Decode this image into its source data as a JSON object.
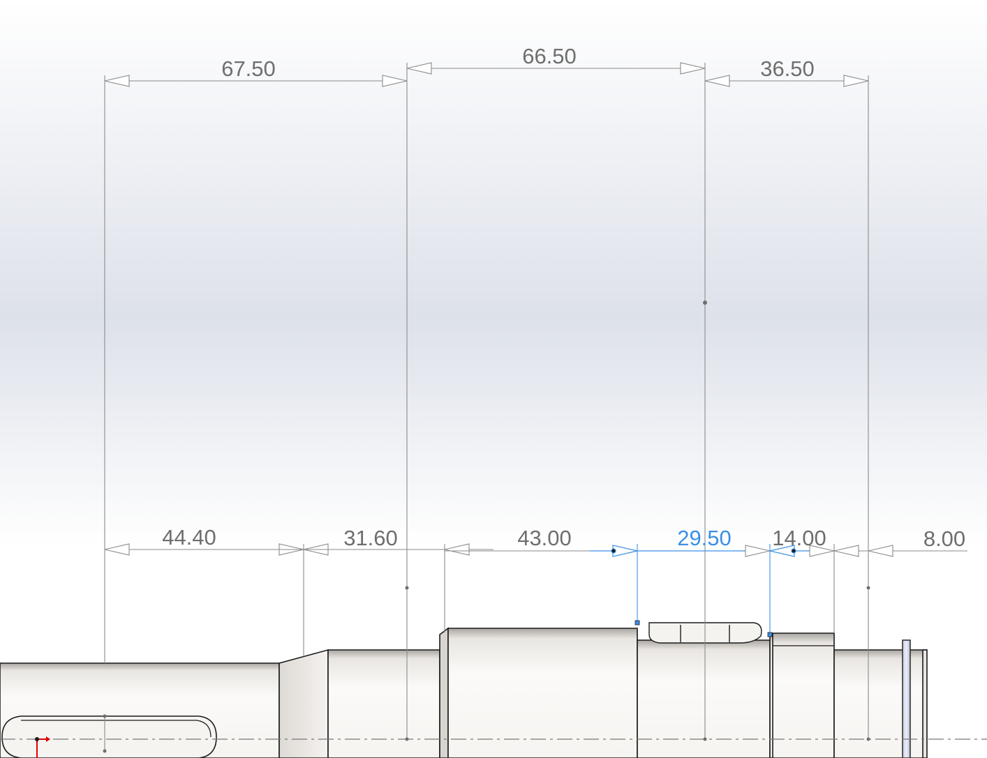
{
  "view": {
    "name": "shaft-sketch-dimensions",
    "background_top": "#ffffff",
    "background_mid": "#dde1ea",
    "background_bottom": "#ffffff"
  },
  "colors": {
    "dimension": "#808080",
    "dimension_text": "#6e6e6e",
    "selected_dimension": "#3b8fe6",
    "part_edge": "#1a1a1a",
    "origin_marker": "#e00000",
    "centerline": "#777777"
  },
  "dimensions": {
    "top": [
      {
        "id": "dim-67-50",
        "label": "67.50"
      },
      {
        "id": "dim-66-50",
        "label": "66.50"
      },
      {
        "id": "dim-36-50",
        "label": "36.50"
      }
    ],
    "bottom": [
      {
        "id": "dim-44-40",
        "label": "44.40"
      },
      {
        "id": "dim-31-60",
        "label": "31.60"
      },
      {
        "id": "dim-43-00",
        "label": "43.00"
      },
      {
        "id": "dim-29-50",
        "label": "29.50",
        "selected": true
      },
      {
        "id": "dim-14-00",
        "label": "14.00"
      },
      {
        "id": "dim-8-00",
        "label": "8.00"
      }
    ]
  },
  "icons": {
    "origin": "origin-triad-icon"
  }
}
